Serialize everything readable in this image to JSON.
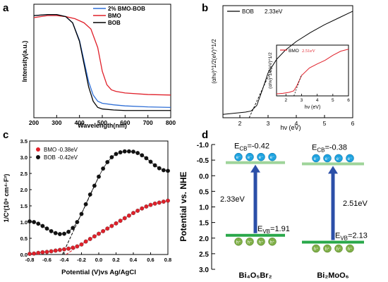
{
  "panels": {
    "a": "a",
    "b": "b",
    "c": "c",
    "d": "d"
  },
  "chart_data": [
    {
      "id": "a",
      "type": "line",
      "xlabel": "Wavelength(nm)",
      "ylabel": "Intensity(a.u.)",
      "xlim": [
        200,
        800
      ],
      "xticks": [
        200,
        300,
        400,
        500,
        600,
        700,
        800
      ],
      "ylim": [
        0,
        1.1
      ],
      "legend_position": "top-right",
      "series": [
        {
          "name": "2% BMO-BOB",
          "color": "#2f6fd6",
          "x": [
            200,
            260,
            300,
            340,
            370,
            400,
            420,
            440,
            460,
            480,
            500,
            550,
            600,
            700,
            800
          ],
          "y": [
            0.99,
            1.0,
            1.0,
            0.98,
            0.92,
            0.75,
            0.55,
            0.35,
            0.22,
            0.16,
            0.14,
            0.125,
            0.115,
            0.105,
            0.1
          ]
        },
        {
          "name": "BMO",
          "color": "#e0202a",
          "x": [
            200,
            260,
            300,
            340,
            380,
            420,
            450,
            480,
            500,
            520,
            540,
            560,
            600,
            700,
            800
          ],
          "y": [
            0.97,
            0.99,
            0.99,
            0.98,
            0.96,
            0.92,
            0.86,
            0.68,
            0.45,
            0.32,
            0.27,
            0.255,
            0.24,
            0.225,
            0.22
          ]
        },
        {
          "name": "BOB",
          "color": "#000000",
          "x": [
            200,
            260,
            300,
            340,
            370,
            400,
            420,
            440,
            460,
            480,
            500,
            550,
            600,
            700,
            800
          ],
          "y": [
            0.99,
            1.0,
            1.0,
            0.98,
            0.92,
            0.74,
            0.52,
            0.3,
            0.16,
            0.1,
            0.085,
            0.075,
            0.07,
            0.07,
            0.07
          ]
        }
      ]
    },
    {
      "id": "b",
      "type": "line",
      "xlabel": "hν (eV)",
      "ylabel": "(αhν)^1/2(eV)^1/2",
      "xlim": [
        1.4,
        6
      ],
      "xticks": [
        2,
        3,
        4,
        5,
        6
      ],
      "ylim": [
        0,
        1
      ],
      "legend_position": "top-left",
      "series": [
        {
          "name": "BOB",
          "label": "2.33eV",
          "color": "#000000",
          "x": [
            1.4,
            1.8,
            2.2,
            2.4,
            2.6,
            2.8,
            3.0,
            3.3,
            3.6,
            4.0,
            4.5,
            5.0,
            5.5,
            6.0
          ],
          "y": [
            0.03,
            0.04,
            0.05,
            0.06,
            0.11,
            0.25,
            0.4,
            0.52,
            0.6,
            0.68,
            0.76,
            0.83,
            0.89,
            0.95
          ]
        }
      ],
      "fit_line": {
        "x": [
          2.33,
          3.1
        ],
        "y": [
          0.0,
          0.42
        ]
      },
      "inset": {
        "xlabel": "hν (eV)",
        "ylabel": "(αhν)^1/2(eV)^1/2",
        "xlim": [
          1.4,
          6
        ],
        "xticks": [
          2,
          3,
          4,
          5,
          6
        ],
        "ylim": [
          0,
          1
        ],
        "series": [
          {
            "name": "BMO",
            "label": "2.51eV",
            "color": "#e0202a",
            "x": [
              1.4,
              1.8,
              2.2,
              2.5,
              2.7,
              3.0,
              3.5,
              4.0,
              4.5,
              5.0,
              5.5,
              6.0
            ],
            "y": [
              0.04,
              0.05,
              0.07,
              0.1,
              0.2,
              0.4,
              0.55,
              0.63,
              0.7,
              0.8,
              0.88,
              0.92
            ]
          }
        ],
        "fit_line": {
          "x": [
            2.51,
            3.0
          ],
          "y": [
            0.0,
            0.42
          ]
        }
      }
    },
    {
      "id": "c",
      "type": "scatter",
      "xlabel": "Potential (V)vs Ag/AgCl",
      "ylabel": "1/C²(10⁹ cm⁴·F²)",
      "xlim": [
        -0.8,
        0.8
      ],
      "xticks": [
        -0.8,
        -0.6,
        -0.4,
        -0.2,
        0.0,
        0.2,
        0.4,
        0.6,
        0.8
      ],
      "ylim": [
        0.0,
        3.5
      ],
      "yticks": [
        0.0,
        0.5,
        1.0,
        1.5,
        2.0,
        2.5,
        3.0,
        3.5
      ],
      "legend_position": "top-left",
      "series": [
        {
          "name": "BMO",
          "label": "-0.38eV",
          "color": "#e0202a",
          "x": [
            -0.8,
            -0.75,
            -0.7,
            -0.65,
            -0.6,
            -0.55,
            -0.5,
            -0.45,
            -0.4,
            -0.35,
            -0.3,
            -0.25,
            -0.2,
            -0.15,
            -0.1,
            -0.05,
            0.0,
            0.05,
            0.1,
            0.15,
            0.2,
            0.25,
            0.3,
            0.35,
            0.4,
            0.45,
            0.5,
            0.55,
            0.6,
            0.65,
            0.7,
            0.75,
            0.8
          ],
          "y": [
            0.02,
            0.03,
            0.05,
            0.07,
            0.08,
            0.1,
            0.12,
            0.14,
            0.16,
            0.18,
            0.21,
            0.25,
            0.31,
            0.4,
            0.48,
            0.56,
            0.64,
            0.72,
            0.8,
            0.88,
            0.96,
            1.04,
            1.12,
            1.2,
            1.28,
            1.35,
            1.42,
            1.48,
            1.53,
            1.57,
            1.6,
            1.63,
            1.66
          ]
        },
        {
          "name": "BOB",
          "label": "-0.42eV",
          "color": "#111111",
          "x": [
            -0.8,
            -0.75,
            -0.7,
            -0.65,
            -0.6,
            -0.55,
            -0.5,
            -0.45,
            -0.4,
            -0.35,
            -0.3,
            -0.25,
            -0.2,
            -0.15,
            -0.1,
            -0.05,
            0.0,
            0.05,
            0.1,
            0.15,
            0.2,
            0.25,
            0.3,
            0.35,
            0.4,
            0.45,
            0.5,
            0.55,
            0.6,
            0.65,
            0.7,
            0.75,
            0.8
          ],
          "y": [
            1.02,
            1.0,
            0.95,
            0.88,
            0.8,
            0.72,
            0.66,
            0.63,
            0.64,
            0.7,
            0.82,
            1.0,
            1.25,
            1.55,
            1.85,
            2.12,
            2.4,
            2.65,
            2.85,
            3.0,
            3.1,
            3.15,
            3.18,
            3.18,
            3.17,
            3.13,
            3.06,
            2.97,
            2.86,
            2.75,
            2.66,
            2.6,
            2.58
          ]
        }
      ],
      "fit_lines": [
        {
          "color": "#e0202a",
          "x": [
            -0.38,
            -0.15
          ],
          "y": [
            0.0,
            0.4
          ]
        },
        {
          "color": "#000000",
          "x": [
            -0.42,
            0.0
          ],
          "y": [
            0.0,
            2.4
          ]
        }
      ]
    },
    {
      "id": "d",
      "type": "diagram",
      "ylabel": "Potential  vs. NHE",
      "ylim": [
        3.0,
        -1.0
      ],
      "yticks": [
        -1.0,
        -0.5,
        0.0,
        0.5,
        1.0,
        1.5,
        2.0,
        2.5,
        3.0
      ],
      "materials": [
        {
          "name": "Bi4O5Br2",
          "label": "Bi₄O₅Br₂",
          "cb": -0.42,
          "vb": 1.91,
          "gap": "2.33eV",
          "cb_label": "E_CB=-0.42",
          "vb_label": "E_VB=1.91"
        },
        {
          "name": "Bi2MoO6",
          "label": "Bi₂MoO₆",
          "cb": -0.38,
          "vb": 2.13,
          "gap": "2.51eV",
          "cb_label": "E_CB=-0.38",
          "vb_label": "E_VB=2.13"
        }
      ],
      "electron_label": "e⁻",
      "hole_label": "h⁺",
      "colors": {
        "cb": "#9fd49a",
        "vb": "#29a84a",
        "arrow": "#2b4fa8",
        "electron": "#1fa3e0",
        "hole": "#7faf47"
      }
    }
  ]
}
